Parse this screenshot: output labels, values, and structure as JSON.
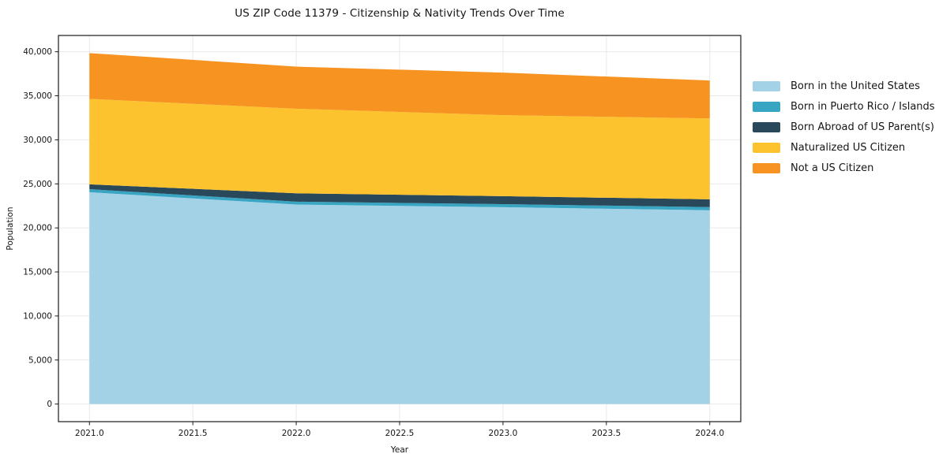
{
  "chart_data": {
    "type": "area",
    "stacked": true,
    "title": "US ZIP Code 11379 - Citizenship & Nativity Trends Over Time",
    "xlabel": "Year",
    "ylabel": "Population",
    "x": [
      2021,
      2022,
      2023,
      2024
    ],
    "series": [
      {
        "name": "Born in the United States",
        "color": "#a3d2e7",
        "values": [
          24050,
          22650,
          22350,
          22000
        ]
      },
      {
        "name": "Born in Puerto Rico / Islands",
        "color": "#38a5c3",
        "values": [
          350,
          330,
          350,
          360
        ]
      },
      {
        "name": "Born Abroad of US Parent(s)",
        "color": "#29485a",
        "values": [
          550,
          950,
          900,
          890
        ]
      },
      {
        "name": "Naturalized US Citizen",
        "color": "#fdc32e",
        "values": [
          9700,
          9600,
          9200,
          9180
        ]
      },
      {
        "name": "Not a US Citizen",
        "color": "#f79421",
        "values": [
          5200,
          4780,
          4830,
          4310
        ]
      }
    ],
    "xticks": [
      2021.0,
      2021.5,
      2022.0,
      2022.5,
      2023.0,
      2023.5,
      2024.0
    ],
    "xtick_labels": [
      "2021.0",
      "2021.5",
      "2022.0",
      "2022.5",
      "2023.0",
      "2023.5",
      "2024.0"
    ],
    "yticks": [
      0,
      5000,
      10000,
      15000,
      20000,
      25000,
      30000,
      35000,
      40000
    ],
    "ytick_labels": [
      "0",
      "5,000",
      "10,000",
      "15,000",
      "20,000",
      "25,000",
      "30,000",
      "35,000",
      "40,000"
    ],
    "xlim": [
      2020.85,
      2024.15
    ],
    "ylim": [
      -2000,
      41850
    ],
    "grid": true,
    "legend_position": "right",
    "colors": {
      "grid": "#e9e9e9",
      "axis": "#1a1a1a",
      "text": "#151515",
      "background": "#ffffff"
    }
  }
}
